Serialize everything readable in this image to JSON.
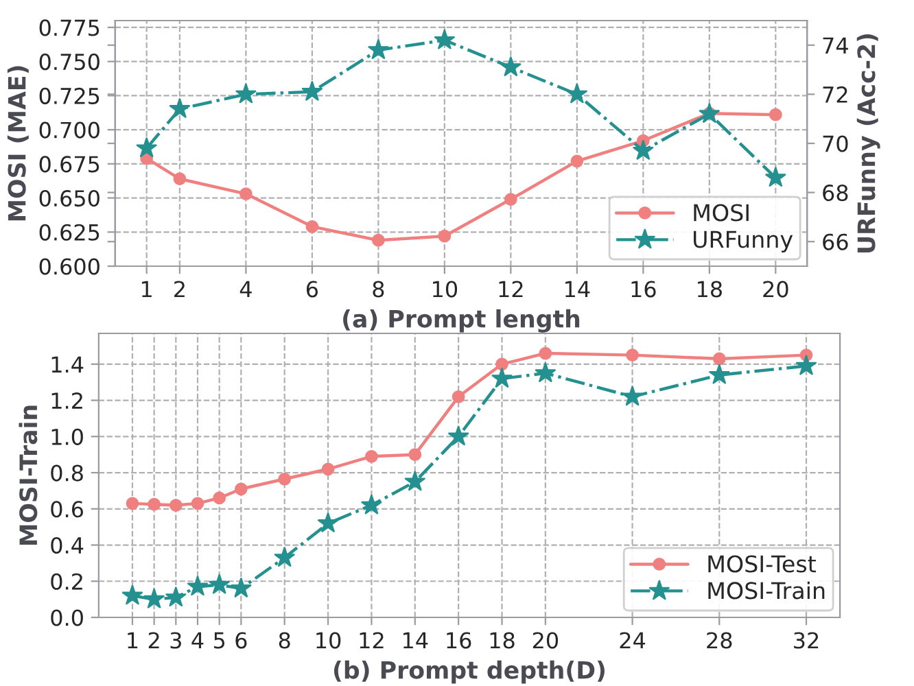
{
  "chart_data": [
    {
      "type": "line",
      "xlabel": "(a) Prompt length",
      "ylabel": "MOSI (MAE)",
      "y2label": "URFunny (Acc-2)",
      "x": [
        1,
        2,
        4,
        6,
        8,
        10,
        12,
        14,
        16,
        18,
        20
      ],
      "series": [
        {
          "name": "MOSI",
          "color": "#f08080",
          "marker": "circle",
          "line_style": "solid",
          "values": [
            0.679,
            0.664,
            0.653,
            0.629,
            0.619,
            0.622,
            0.649,
            0.677,
            0.692,
            0.712,
            0.711
          ]
        },
        {
          "name": "URFunny",
          "color": "#259090",
          "marker": "star",
          "line_style": "dashdot",
          "axis": "y2",
          "values": [
            69.8,
            71.4,
            72.0,
            72.1,
            73.8,
            74.2,
            73.1,
            72.0,
            69.7,
            71.2,
            68.6
          ]
        }
      ],
      "xlim": [
        0.05,
        20.95
      ],
      "xticks": [
        1,
        2,
        4,
        6,
        8,
        10,
        12,
        14,
        16,
        18,
        20
      ],
      "ylim": [
        0.6,
        0.78
      ],
      "yticks": [
        {
          "value": 0.6,
          "label": "0.600"
        },
        0.625,
        {
          "value": 0.65,
          "label": "0.650"
        },
        0.675,
        {
          "value": 0.7,
          "label": "0.700"
        },
        0.725,
        {
          "value": 0.75,
          "label": "0.750"
        },
        0.775
      ],
      "y2lim": [
        65,
        75
      ],
      "y2ticks": [
        66,
        68,
        70,
        72,
        74
      ],
      "grid": true,
      "legend": "bottom right"
    },
    {
      "type": "line",
      "xlabel": "(b) Prompt depth(D)",
      "ylabel": "MOSI-Train",
      "x": [
        1,
        2,
        3,
        4,
        5,
        6,
        8,
        10,
        12,
        14,
        16,
        18,
        20,
        24,
        28,
        32
      ],
      "series": [
        {
          "name": "MOSI-Test",
          "color": "#f08080",
          "marker": "circle",
          "line_style": "solid",
          "values": [
            0.63,
            0.625,
            0.62,
            0.63,
            0.66,
            0.71,
            0.765,
            0.82,
            0.89,
            0.9,
            1.22,
            1.4,
            1.46,
            1.45,
            1.43,
            1.45
          ]
        },
        {
          "name": "MOSI-Train",
          "color": "#259090",
          "marker": "star",
          "line_style": "dashdot",
          "values": [
            0.12,
            0.1,
            0.11,
            0.17,
            0.18,
            0.16,
            0.33,
            0.52,
            0.62,
            0.75,
            1.0,
            1.32,
            1.35,
            1.22,
            1.34,
            1.39
          ]
        }
      ],
      "xlim": [
        -0.55,
        33.55
      ],
      "xticks": [
        1,
        2,
        3,
        4,
        5,
        6,
        8,
        10,
        12,
        14,
        16,
        18,
        20,
        24,
        28,
        32
      ],
      "ylim": [
        0,
        1.57
      ],
      "yticks": [
        {
          "value": 0,
          "label": "0.0"
        },
        0.2,
        0.4,
        0.6,
        0.8,
        {
          "value": 1,
          "label": "1.0"
        },
        1.2,
        1.4
      ],
      "grid": true,
      "legend": "bottom right"
    }
  ]
}
